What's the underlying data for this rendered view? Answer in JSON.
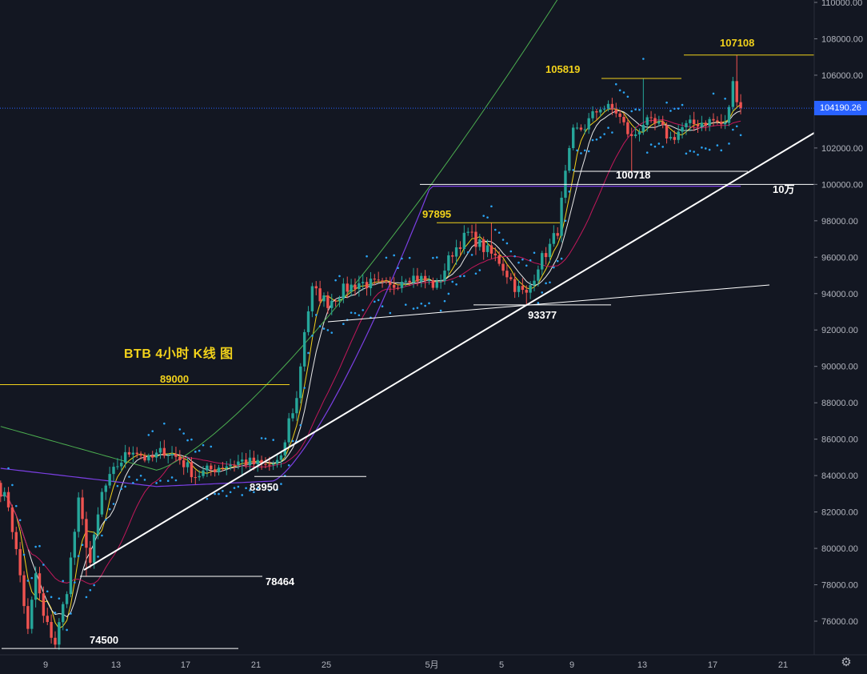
{
  "chart_title": "BTB 4小时 K线 图",
  "current_price": "104190.26",
  "settings_icon": "gear-icon",
  "colors": {
    "background": "#131722",
    "up": "#26a69a",
    "down": "#ef5350",
    "accent_blue": "#2962ff",
    "label_yellow": "#f2d21b",
    "trend_white": "#ffffff",
    "ma_purple": "#7b3fe4",
    "ma_green": "#4caf50",
    "psar": "#2aa4f4"
  },
  "chart_data": {
    "type": "candlestick",
    "title": "BTB 4小时 K线 图",
    "y_axis": {
      "min": 74000,
      "max": 111000,
      "ticks": [
        "76000.00",
        "78000.00",
        "80000.00",
        "82000.00",
        "84000.00",
        "86000.00",
        "88000.00",
        "90000.00",
        "92000.00",
        "94000.00",
        "96000.00",
        "98000.00",
        "100000.00",
        "102000.00",
        "104000.00",
        "106000.00",
        "108000.00",
        "110000.00"
      ]
    },
    "x_axis": {
      "ticks": [
        "9",
        "13",
        "17",
        "21",
        "25",
        "5月",
        "5",
        "9",
        "13",
        "17",
        "21"
      ]
    },
    "anchors": [
      {
        "t": 0,
        "p": 83200
      },
      {
        "t": 2,
        "p": 82400
      },
      {
        "t": 5,
        "p": 78500
      },
      {
        "t": 7,
        "p": 75400
      },
      {
        "t": 9,
        "p": 78600
      },
      {
        "t": 11,
        "p": 76200
      },
      {
        "t": 14,
        "p": 74800
      },
      {
        "t": 17,
        "p": 77800
      },
      {
        "t": 20,
        "p": 82500
      },
      {
        "t": 23,
        "p": 79200
      },
      {
        "t": 26,
        "p": 83000
      },
      {
        "t": 30,
        "p": 84600
      },
      {
        "t": 34,
        "p": 85500
      },
      {
        "t": 38,
        "p": 84800
      },
      {
        "t": 42,
        "p": 85400
      },
      {
        "t": 46,
        "p": 84900
      },
      {
        "t": 50,
        "p": 84000
      },
      {
        "t": 56,
        "p": 84500
      },
      {
        "t": 62,
        "p": 84800
      },
      {
        "t": 68,
        "p": 84500
      },
      {
        "t": 72,
        "p": 84800
      },
      {
        "t": 74,
        "p": 87000
      },
      {
        "t": 76,
        "p": 88200
      },
      {
        "t": 78,
        "p": 92000
      },
      {
        "t": 80,
        "p": 94200
      },
      {
        "t": 84,
        "p": 93500
      },
      {
        "t": 88,
        "p": 94200
      },
      {
        "t": 92,
        "p": 94600
      },
      {
        "t": 96,
        "p": 94500
      },
      {
        "t": 100,
        "p": 94300
      },
      {
        "t": 104,
        "p": 95000
      },
      {
        "t": 108,
        "p": 94800
      },
      {
        "t": 112,
        "p": 94400
      },
      {
        "t": 116,
        "p": 96300
      },
      {
        "t": 120,
        "p": 97300
      },
      {
        "t": 124,
        "p": 96500
      },
      {
        "t": 128,
        "p": 95800
      },
      {
        "t": 132,
        "p": 94400
      },
      {
        "t": 135,
        "p": 93900
      },
      {
        "t": 138,
        "p": 95600
      },
      {
        "t": 141,
        "p": 96600
      },
      {
        "t": 143,
        "p": 97500
      },
      {
        "t": 145,
        "p": 100500
      },
      {
        "t": 147,
        "p": 102800
      },
      {
        "t": 150,
        "p": 103200
      },
      {
        "t": 154,
        "p": 104300
      },
      {
        "t": 158,
        "p": 104000
      },
      {
        "t": 162,
        "p": 102500
      },
      {
        "t": 165,
        "p": 103400
      },
      {
        "t": 169,
        "p": 103200
      },
      {
        "t": 172,
        "p": 102500
      },
      {
        "t": 175,
        "p": 103100
      },
      {
        "t": 179,
        "p": 103400
      },
      {
        "t": 183,
        "p": 103500
      },
      {
        "t": 186,
        "p": 103200
      },
      {
        "t": 188,
        "p": 105500
      },
      {
        "t": 190,
        "p": 104200
      }
    ],
    "horizontal_levels": [
      {
        "label": "107108",
        "value": 107108,
        "color": "yellow"
      },
      {
        "label": "105819",
        "value": 105819,
        "color": "yellow"
      },
      {
        "label": "100718",
        "value": 100718,
        "color": "white"
      },
      {
        "label": "10万",
        "value": 100000,
        "color": "white"
      },
      {
        "label": "97895",
        "value": 97895,
        "color": "yellow"
      },
      {
        "label": "93377",
        "value": 93377,
        "color": "white"
      },
      {
        "label": "89000",
        "value": 89000,
        "color": "yellow"
      },
      {
        "label": "83950",
        "value": 83950,
        "color": "white"
      },
      {
        "label": "78464",
        "value": 78464,
        "color": "white"
      },
      {
        "label": "74500",
        "value": 74500,
        "color": "white"
      }
    ],
    "grid": false,
    "legend": "none"
  }
}
